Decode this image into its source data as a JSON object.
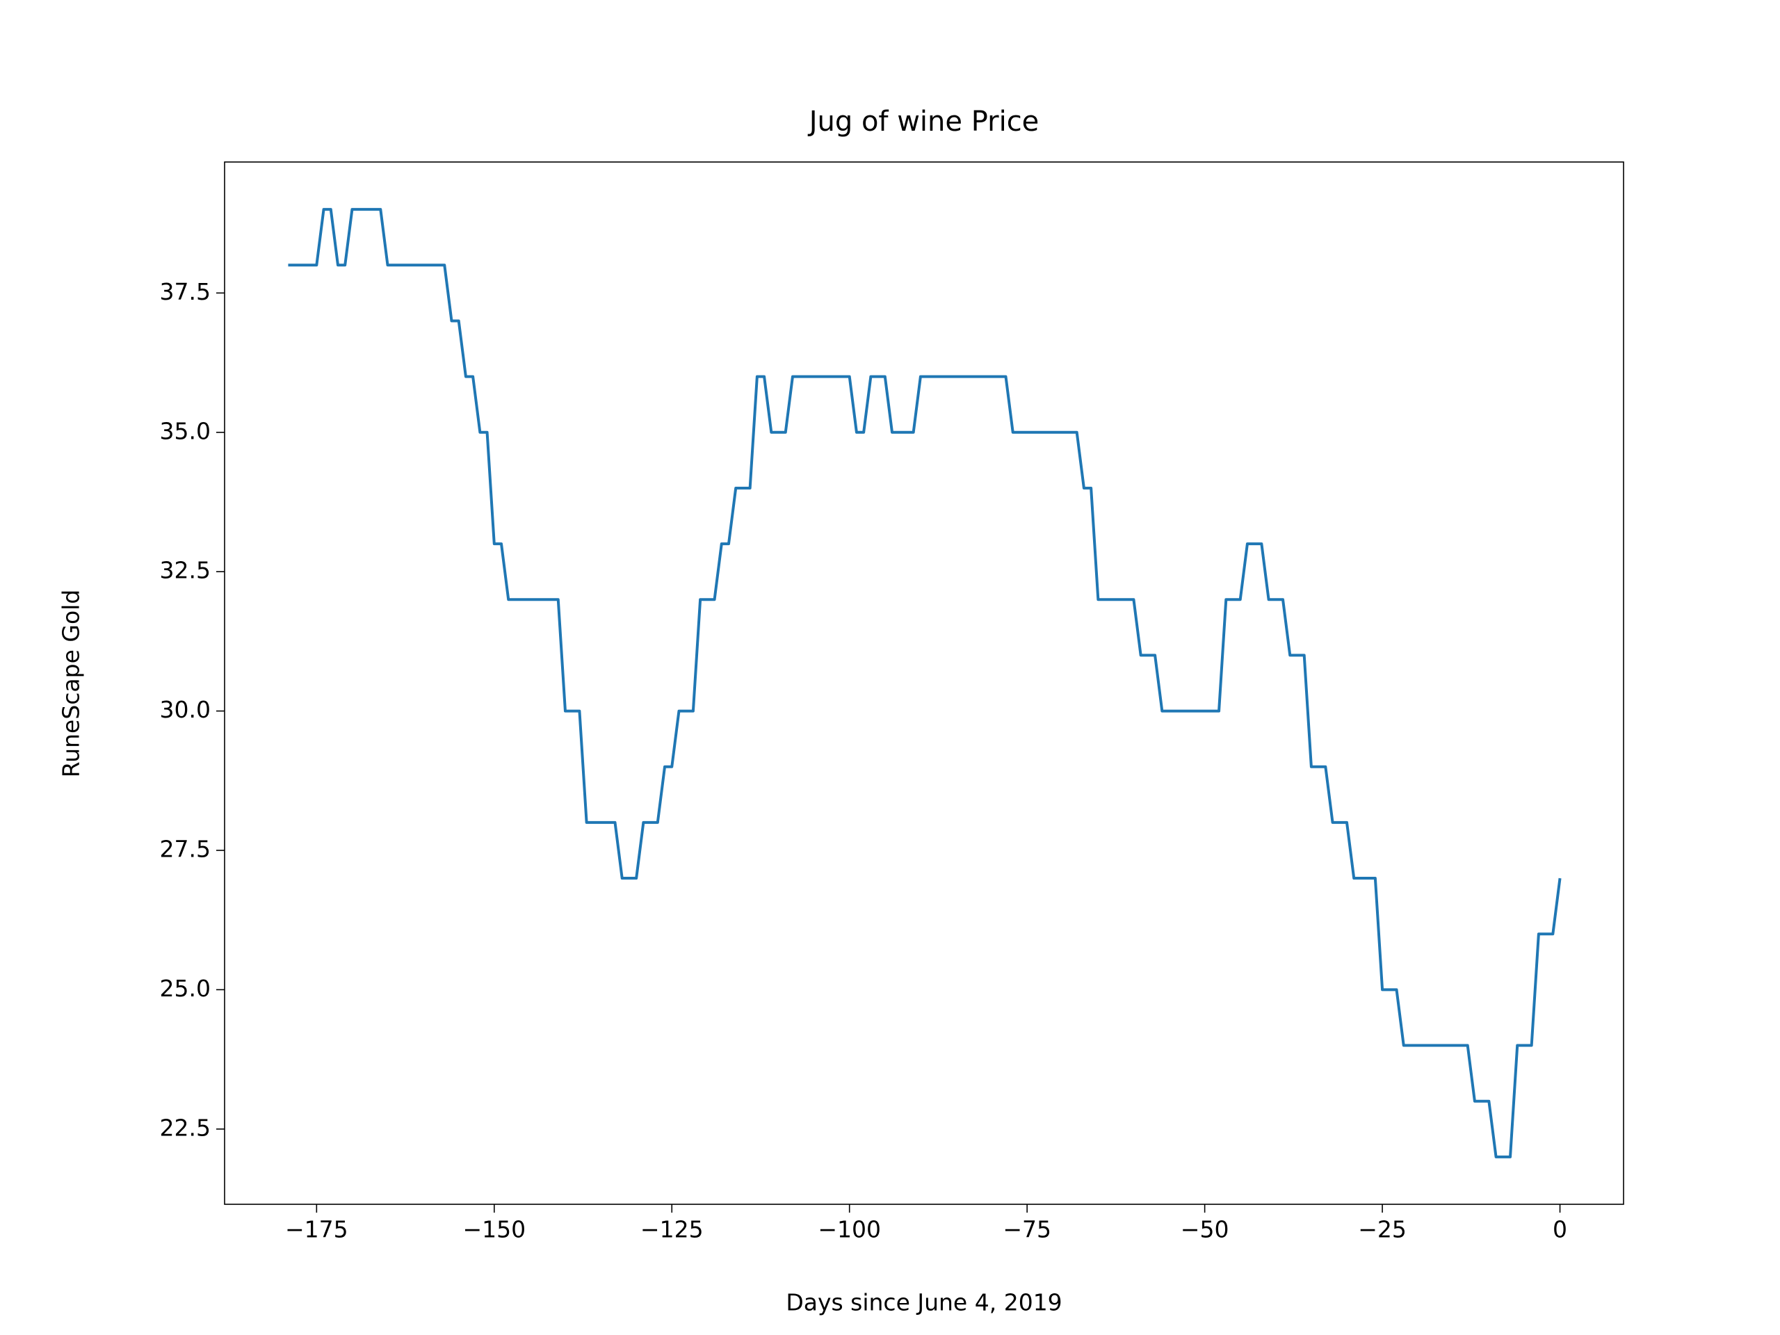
{
  "chart_data": {
    "type": "line",
    "title": "Jug of wine Price",
    "x_label": "Days since June 4, 2019",
    "y_label": "RuneScape Gold",
    "color": "#1f77b4",
    "x": [
      -179,
      -178,
      -177,
      -176,
      -175,
      -174,
      -173,
      -172,
      -171,
      -170,
      -169,
      -168,
      -167,
      -166,
      -165,
      -164,
      -163,
      -162,
      -161,
      -160,
      -159,
      -158,
      -157,
      -156,
      -155,
      -154,
      -153,
      -152,
      -151,
      -150,
      -149,
      -148,
      -147,
      -146,
      -145,
      -144,
      -143,
      -142,
      -141,
      -140,
      -139,
      -138,
      -137,
      -136,
      -135,
      -134,
      -133,
      -132,
      -131,
      -130,
      -129,
      -128,
      -127,
      -126,
      -125,
      -124,
      -123,
      -122,
      -121,
      -120,
      -119,
      -118,
      -117,
      -116,
      -115,
      -114,
      -113,
      -112,
      -111,
      -110,
      -109,
      -108,
      -107,
      -106,
      -105,
      -104,
      -103,
      -102,
      -101,
      -100,
      -99,
      -98,
      -97,
      -96,
      -95,
      -94,
      -93,
      -92,
      -91,
      -90,
      -89,
      -88,
      -87,
      -86,
      -85,
      -84,
      -83,
      -82,
      -81,
      -80,
      -79,
      -78,
      -77,
      -76,
      -75,
      -74,
      -73,
      -72,
      -71,
      -70,
      -69,
      -68,
      -67,
      -66,
      -65,
      -64,
      -63,
      -62,
      -61,
      -60,
      -59,
      -58,
      -57,
      -56,
      -55,
      -54,
      -53,
      -52,
      -51,
      -50,
      -49,
      -48,
      -47,
      -46,
      -45,
      -44,
      -43,
      -42,
      -41,
      -40,
      -39,
      -38,
      -37,
      -36,
      -35,
      -34,
      -33,
      -32,
      -31,
      -30,
      -29,
      -28,
      -27,
      -26,
      -25,
      -24,
      -23,
      -22,
      -21,
      -20,
      -19,
      -18,
      -17,
      -16,
      -15,
      -14,
      -13,
      -12,
      -11,
      -10,
      -9,
      -8,
      -7,
      -6,
      -5,
      -4,
      -3,
      -2,
      -1,
      0
    ],
    "values": [
      38,
      38,
      38,
      38,
      38,
      39,
      39,
      38,
      38,
      39,
      39,
      39,
      39,
      39,
      38,
      38,
      38,
      38,
      38,
      38,
      38,
      38,
      38,
      37,
      37,
      36,
      36,
      35,
      35,
      33,
      33,
      32,
      32,
      32,
      32,
      32,
      32,
      32,
      32,
      30,
      30,
      30,
      28,
      28,
      28,
      28,
      28,
      27,
      27,
      27,
      28,
      28,
      28,
      29,
      29,
      30,
      30,
      30,
      32,
      32,
      32,
      33,
      33,
      34,
      34,
      34,
      36,
      36,
      35,
      35,
      35,
      36,
      36,
      36,
      36,
      36,
      36,
      36,
      36,
      36,
      35,
      35,
      36,
      36,
      36,
      35,
      35,
      35,
      35,
      36,
      36,
      36,
      36,
      36,
      36,
      36,
      36,
      36,
      36,
      36,
      36,
      36,
      35,
      35,
      35,
      35,
      35,
      35,
      35,
      35,
      35,
      35,
      34,
      34,
      32,
      32,
      32,
      32,
      32,
      32,
      31,
      31,
      31,
      30,
      30,
      30,
      30,
      30,
      30,
      30,
      30,
      30,
      32,
      32,
      32,
      33,
      33,
      33,
      32,
      32,
      32,
      31,
      31,
      31,
      29,
      29,
      29,
      28,
      28,
      28,
      27,
      27,
      27,
      27,
      25,
      25,
      25,
      24,
      24,
      24,
      24,
      24,
      24,
      24,
      24,
      24,
      24,
      23,
      23,
      23,
      22,
      22,
      22,
      24,
      24,
      24,
      26,
      26,
      26,
      27
    ],
    "xlim": [
      -187.95,
      8.95
    ],
    "xticks": [
      {
        "value": -175,
        "label": "−175"
      },
      {
        "value": -150,
        "label": "−150"
      },
      {
        "value": -125,
        "label": "−125"
      },
      {
        "value": -100,
        "label": "−100"
      },
      {
        "value": -75,
        "label": "−75"
      },
      {
        "value": -50,
        "label": "−50"
      },
      {
        "value": -25,
        "label": "−25"
      },
      0
    ],
    "ylim": [
      21.15,
      39.85
    ],
    "yticks": [
      22.5,
      {
        "value": 25,
        "label": "25.0"
      },
      27.5,
      {
        "value": 30,
        "label": "30.0"
      },
      32.5,
      {
        "value": 35,
        "label": "35.0"
      },
      37.5
    ],
    "grid": false
  }
}
